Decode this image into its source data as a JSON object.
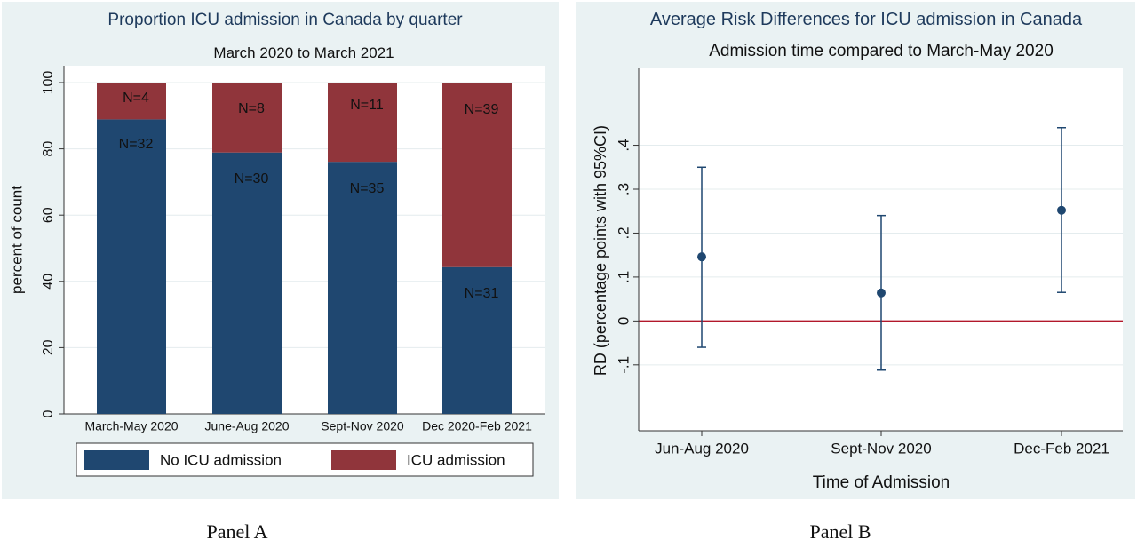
{
  "chart_data": [
    {
      "type": "bar",
      "stacked": true,
      "title": "Proportion ICU admission in Canada by quarter",
      "subtitle": "March 2020 to March 2021",
      "panel_label": "Panel A",
      "ylabel": "percent of count",
      "ylim": [
        0,
        100
      ],
      "yticks": [
        "0",
        "20",
        "40",
        "60",
        "80",
        "100"
      ],
      "categories": [
        "March-May 2020",
        "June-Aug 2020",
        "Sept-Nov 2020",
        "Dec 2020-Feb 2021"
      ],
      "series": [
        {
          "name": "No ICU admission",
          "color": "#1f4770",
          "values": [
            88.9,
            78.9,
            76.1,
            44.3
          ],
          "labels": [
            "N=32",
            "N=30",
            "N=35",
            "N=31"
          ]
        },
        {
          "name": "ICU admission",
          "color": "#90353b",
          "values": [
            11.1,
            21.1,
            23.9,
            55.7
          ],
          "labels": [
            "N=4",
            "N=8",
            "N=11",
            "N=39"
          ]
        }
      ],
      "legend_position": "bottom",
      "background_color": "#eaf2f3"
    },
    {
      "type": "scatter",
      "error_bars": true,
      "title": "Average Risk Differences for ICU admission in Canada",
      "subtitle": "Admission time compared to March-May 2020",
      "panel_label": "Panel B",
      "xlabel": "Time of Admission",
      "ylabel": "RD (percentage points with 95%CI)",
      "ylim": [
        -0.25,
        0.575
      ],
      "yticks": [
        "-.1",
        "0",
        ".1",
        ".2",
        ".3",
        ".4"
      ],
      "categories": [
        "Jun-Aug 2020",
        "Sept-Nov 2020",
        "Dec-Feb 2021"
      ],
      "estimate": [
        0.146,
        0.064,
        0.252
      ],
      "ci_low": [
        -0.06,
        -0.112,
        0.065
      ],
      "ci_high": [
        0.35,
        0.24,
        0.44
      ],
      "reference_line": 0,
      "colors": {
        "point": "#1f4770",
        "reference": "#b2182b",
        "grid": "#e4ecee"
      },
      "background_color": "#eaf2f3"
    }
  ]
}
